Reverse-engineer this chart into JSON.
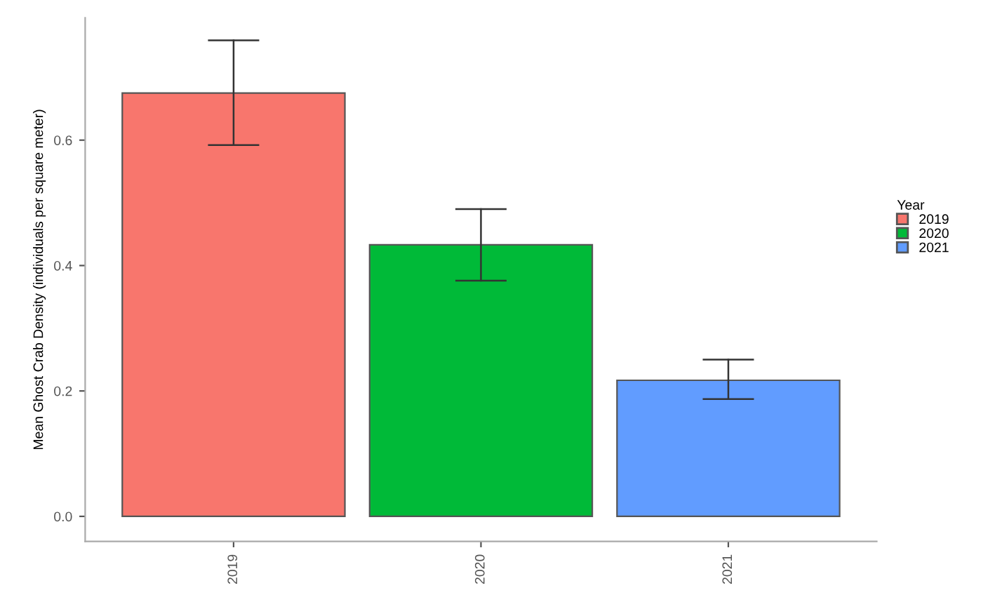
{
  "chart_data": {
    "type": "bar",
    "xlabel": null,
    "ylabel": "Mean Ghost Crab Density (individuals per square meter)",
    "legend_title": "Year",
    "categories": [
      "2019",
      "2020",
      "2021"
    ],
    "series": [
      {
        "name": "2019",
        "color": "#f8766d",
        "values": [
          0.675,
          null,
          null
        ],
        "errors": [
          [
            0.592,
            0.759
          ],
          null,
          null
        ]
      },
      {
        "name": "2020",
        "color": "#00ba38",
        "values": [
          null,
          0.433,
          null
        ],
        "errors": [
          null,
          [
            0.376,
            0.49
          ],
          null
        ]
      },
      {
        "name": "2021",
        "color": "#619cff",
        "values": [
          null,
          null,
          0.217
        ],
        "errors": [
          null,
          null,
          [
            0.187,
            0.25
          ]
        ]
      }
    ],
    "ylim": [
      -0.04,
      0.795
    ],
    "yticks": [
      {
        "value": 0,
        "label": "0.0"
      },
      0.2,
      0.4,
      0.6
    ],
    "grid": false,
    "legend": "right"
  }
}
